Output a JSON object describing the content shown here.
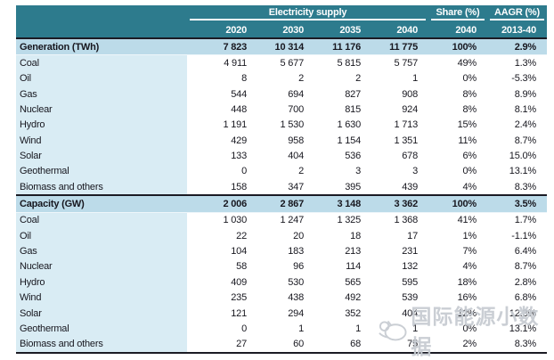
{
  "header": {
    "share_group": "Share (%)",
    "aagr_group": "AAGR (%)",
    "years": [
      "2020",
      "2030",
      "2035",
      "2040"
    ],
    "share_year": "2040",
    "aagr_period": "2013-40"
  },
  "watermark": {
    "text": "国际能源小数据",
    "logo": "hand-ok-icon"
  },
  "colors": {
    "header_teal": "#2d7b8d",
    "group_row_blue": "#bcdbe9",
    "label_column_blue": "#d9ecf4",
    "dark_border": "#1b1b24",
    "watermark_gray": "#c6cbd1"
  },
  "chart_data": {
    "type": "table",
    "title": "Electricity supply",
    "column_groups": [
      "Electricity supply",
      "Share (%)",
      "AAGR (%)"
    ],
    "columns": [
      "2020",
      "2030",
      "2035",
      "2040",
      "2040",
      "2013-40"
    ],
    "rows": [
      {
        "label": "Generation (TWh)",
        "type": "group",
        "values": [
          "7 823",
          "10 314",
          "11 176",
          "11 775",
          "100%",
          "2.9%"
        ]
      },
      {
        "label": "Coal",
        "type": "data",
        "values": [
          "4 911",
          "5 677",
          "5 815",
          "5 757",
          "49%",
          "1.3%"
        ]
      },
      {
        "label": "Oil",
        "type": "data",
        "values": [
          "8",
          "2",
          "2",
          "1",
          "0%",
          "-5.3%"
        ]
      },
      {
        "label": "Gas",
        "type": "data",
        "values": [
          "544",
          "694",
          "827",
          "908",
          "8%",
          "8.9%"
        ]
      },
      {
        "label": "Nuclear",
        "type": "data",
        "values": [
          "448",
          "700",
          "815",
          "924",
          "8%",
          "8.1%"
        ]
      },
      {
        "label": "Hydro",
        "type": "data",
        "values": [
          "1 191",
          "1 530",
          "1 630",
          "1 713",
          "15%",
          "2.4%"
        ]
      },
      {
        "label": "Wind",
        "type": "data",
        "values": [
          "429",
          "958",
          "1 154",
          "1 351",
          "11%",
          "8.7%"
        ]
      },
      {
        "label": "Solar",
        "type": "data",
        "values": [
          "133",
          "404",
          "536",
          "678",
          "6%",
          "15.0%"
        ]
      },
      {
        "label": "Geothermal",
        "type": "data",
        "values": [
          "0",
          "2",
          "3",
          "3",
          "0%",
          "13.1%"
        ]
      },
      {
        "label": "Biomass and others",
        "type": "data",
        "values": [
          "158",
          "347",
          "395",
          "439",
          "4%",
          "8.3%"
        ]
      },
      {
        "label": "Capacity (GW)",
        "type": "group",
        "values": [
          "2 006",
          "2 867",
          "3 148",
          "3 362",
          "100%",
          "3.5%"
        ]
      },
      {
        "label": "Coal",
        "type": "data",
        "values": [
          "1 030",
          "1 247",
          "1 325",
          "1 368",
          "41%",
          "1.7%"
        ]
      },
      {
        "label": "Oil",
        "type": "data",
        "values": [
          "22",
          "20",
          "18",
          "17",
          "1%",
          "-1.1%"
        ]
      },
      {
        "label": "Gas",
        "type": "data",
        "values": [
          "104",
          "183",
          "213",
          "231",
          "7%",
          "6.4%"
        ]
      },
      {
        "label": "Nuclear",
        "type": "data",
        "values": [
          "58",
          "96",
          "114",
          "132",
          "4%",
          "8.7%"
        ]
      },
      {
        "label": "Hydro",
        "type": "data",
        "values": [
          "409",
          "530",
          "565",
          "595",
          "18%",
          "2.8%"
        ]
      },
      {
        "label": "Wind",
        "type": "data",
        "values": [
          "235",
          "438",
          "492",
          "539",
          "16%",
          "6.8%"
        ]
      },
      {
        "label": "Solar",
        "type": "data",
        "values": [
          "121",
          "294",
          "352",
          "404",
          "12%",
          "12.3%"
        ]
      },
      {
        "label": "Geothermal",
        "type": "data",
        "values": [
          "0",
          "1",
          "1",
          "1",
          "0%",
          "13.1%"
        ]
      },
      {
        "label": "Biomass and others",
        "type": "data",
        "values": [
          "27",
          "60",
          "68",
          "75",
          "2%",
          "8.3%"
        ]
      }
    ]
  }
}
